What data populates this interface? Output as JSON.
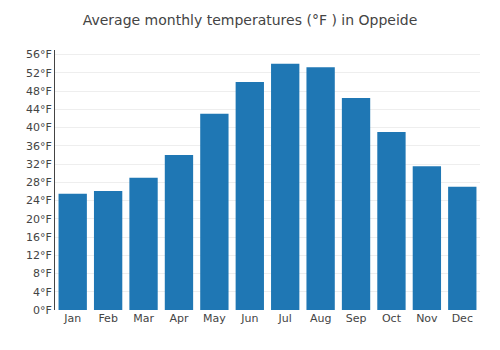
{
  "chart_data": {
    "type": "bar",
    "title": "Average monthly temperatures (°F ) in Oppeide",
    "categories": [
      "Jan",
      "Feb",
      "Mar",
      "Apr",
      "May",
      "Jun",
      "Jul",
      "Aug",
      "Sep",
      "Oct",
      "Nov",
      "Dec"
    ],
    "values": [
      25.5,
      26.1,
      29.0,
      34.0,
      43.0,
      50.0,
      54.0,
      53.2,
      46.5,
      39.0,
      31.5,
      27.0
    ],
    "ylim": [
      0,
      57
    ],
    "yticks": [
      {
        "value": 0,
        "label": "0°F"
      },
      {
        "value": 4,
        "label": "4°F"
      },
      {
        "value": 8,
        "label": "8°F"
      },
      {
        "value": 12,
        "label": "12°F"
      },
      {
        "value": 16,
        "label": "16°F"
      },
      {
        "value": 20,
        "label": "20°F"
      },
      {
        "value": 24,
        "label": "24°F"
      },
      {
        "value": 28,
        "label": "28°F"
      },
      {
        "value": 32,
        "label": "32°F"
      },
      {
        "value": 36,
        "label": "36°F"
      },
      {
        "value": 40,
        "label": "40°F"
      },
      {
        "value": 44,
        "label": "44°F"
      },
      {
        "value": 48,
        "label": "48°F"
      },
      {
        "value": 52,
        "label": "52°F"
      },
      {
        "value": 56,
        "label": "56°F"
      }
    ],
    "grid": true
  }
}
